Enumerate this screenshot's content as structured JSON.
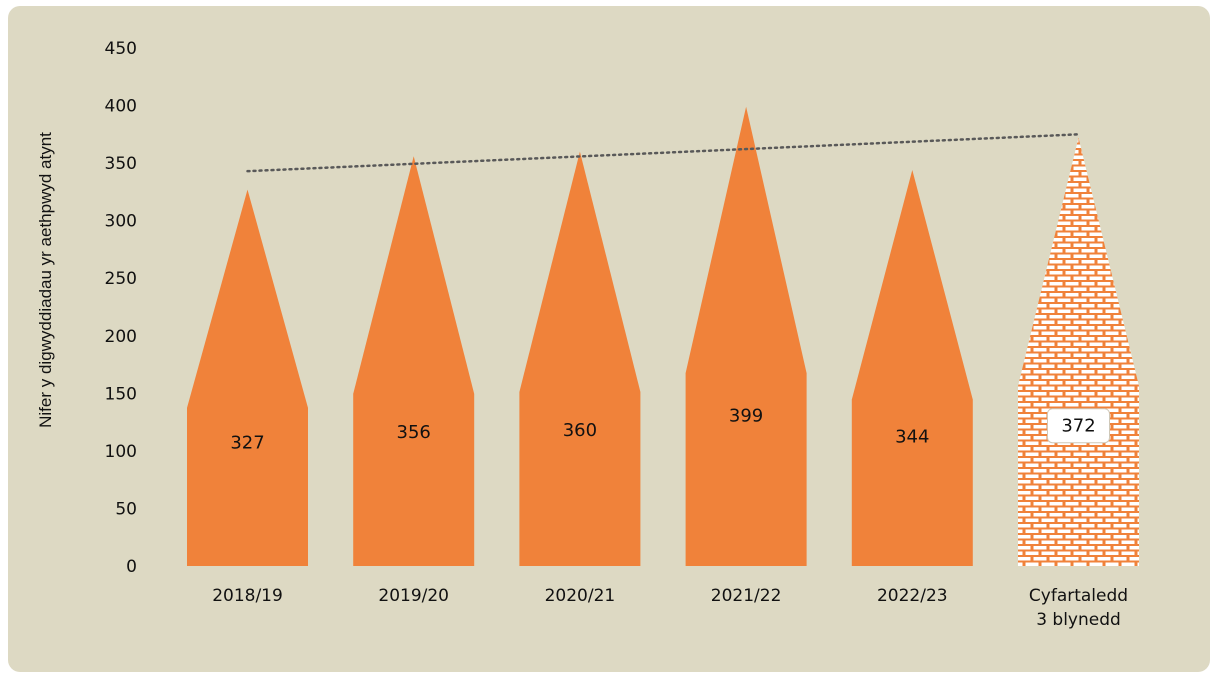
{
  "chart_data": {
    "type": "bar",
    "ylabel": "Nifer y digwyddiadau yr aethpwyd atynt",
    "xlabel": "",
    "ylim": [
      0,
      450
    ],
    "yticks": [
      0,
      50,
      100,
      150,
      200,
      250,
      300,
      350,
      400,
      450
    ],
    "categories": [
      "2018/19",
      "2019/20",
      "2020/21",
      "2021/22",
      "2022/23",
      "Cyfartaledd 3 blynedd"
    ],
    "values": [
      327,
      356,
      360,
      399,
      344,
      372
    ],
    "data_labels": [
      "327",
      "356",
      "360",
      "399",
      "344",
      "372"
    ],
    "bar_style": [
      "solid",
      "solid",
      "solid",
      "solid",
      "solid",
      "brick-pattern"
    ],
    "trendline": {
      "style": "dotted",
      "from_value": 343,
      "to_value": 375
    },
    "grid": false,
    "legend": "none",
    "colors": {
      "bar": "#f0823a",
      "background": "#ddd9c3",
      "trendline": "#595959",
      "text": "#111111"
    }
  }
}
